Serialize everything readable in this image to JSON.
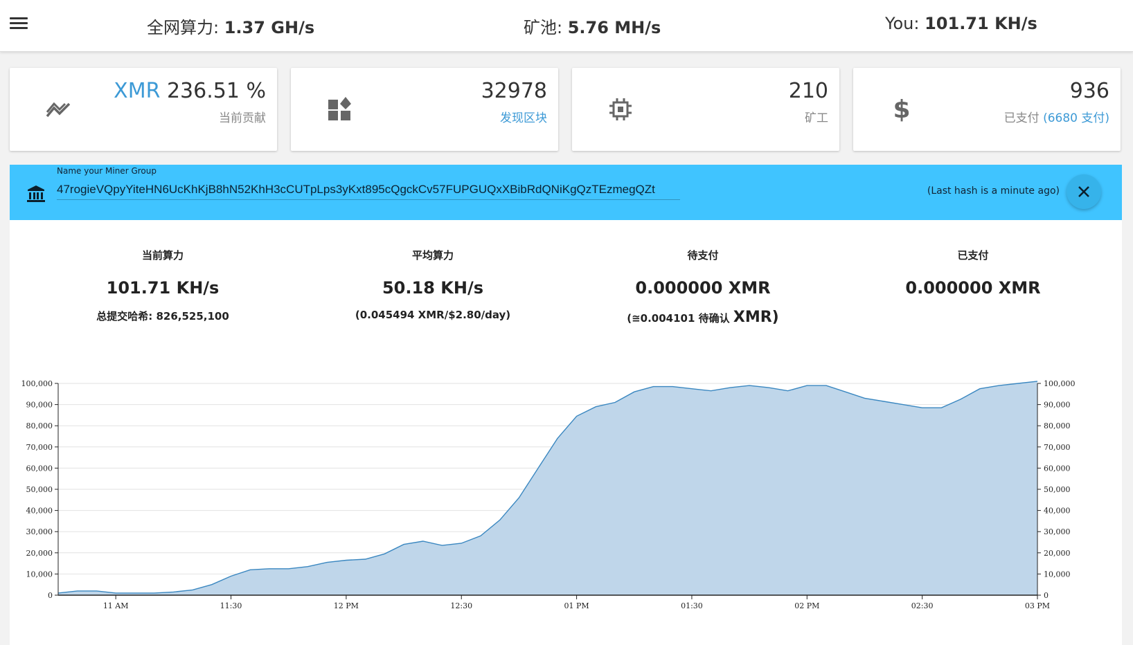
{
  "header": {
    "network": {
      "label": "全网算力: ",
      "value": "1.37 GH/s"
    },
    "pool": {
      "label": "矿池: ",
      "value": "5.76 MH/s"
    },
    "you": {
      "label": "You: ",
      "value": "101.71 KH/s"
    }
  },
  "cards": [
    {
      "icon": "trending-chart-icon",
      "value_prefix": "XMR",
      "value": " 236.51 %",
      "sub": "当前贡献"
    },
    {
      "icon": "widgets-icon",
      "value": "32978",
      "sub": "发现区块"
    },
    {
      "icon": "cpu-chip-icon",
      "value": "210",
      "sub": "矿工"
    },
    {
      "icon": "dollar-icon",
      "value": "936",
      "sub_prefix": "已支付 ",
      "sub": "(6680 支付)"
    }
  ],
  "miner": {
    "label": "Name your Miner Group",
    "address": "47rogieVQpyYiteHN6UcKhKjB8hN52KhH3cCUTpLps3yKxt895cQgckCv57FUPGUQxXBibRdQNiKgQzTEzmegQZt",
    "last_hash": "(Last hash is a minute ago)"
  },
  "stats": [
    {
      "title": "当前算力",
      "value": "101.71 KH/s",
      "sub": "总提交哈希: 826,525,100"
    },
    {
      "title": "平均算力",
      "value": "50.18 KH/s",
      "sub": "(0.045494 XMR/$2.80/day)"
    },
    {
      "title": "待支付",
      "value": "0.000000 XMR",
      "sub_prefix": "(≅0.004101 待确认 ",
      "sub_big": "XMR)"
    },
    {
      "title": "已支付",
      "value": "0.000000 XMR"
    }
  ],
  "colors": {
    "accent": "#3d9ad6",
    "bar": "#40c4ff",
    "area": "#bfd6ea",
    "line": "#3a87c0"
  },
  "chart_data": {
    "type": "area",
    "x_labels": [
      "11 AM",
      "11:30",
      "12 PM",
      "12:30",
      "01 PM",
      "01:30",
      "02 PM",
      "02:30",
      "03 PM"
    ],
    "x": [
      "10:45",
      "10:50",
      "10:55",
      "11:00",
      "11:05",
      "11:10",
      "11:15",
      "11:20",
      "11:25",
      "11:30",
      "11:35",
      "11:40",
      "11:45",
      "11:50",
      "11:55",
      "12:00",
      "12:05",
      "12:10",
      "12:15",
      "12:20",
      "12:25",
      "12:30",
      "12:35",
      "12:40",
      "12:45",
      "12:50",
      "12:55",
      "13:00",
      "13:05",
      "13:10",
      "13:15",
      "13:20",
      "13:25",
      "13:30",
      "13:35",
      "13:40",
      "13:45",
      "13:50",
      "13:55",
      "14:00",
      "14:05",
      "14:10",
      "14:15",
      "14:20",
      "14:25",
      "14:30",
      "14:35",
      "14:40",
      "14:45",
      "14:50",
      "14:55",
      "15:00"
    ],
    "values": [
      1000,
      2000,
      2000,
      1000,
      1000,
      1000,
      1500,
      2500,
      5000,
      9000,
      12000,
      12500,
      12500,
      13500,
      15500,
      16500,
      17000,
      19500,
      24000,
      25500,
      23500,
      24500,
      28000,
      35500,
      46000,
      60000,
      74000,
      84500,
      89000,
      91000,
      96000,
      98500,
      98500,
      97500,
      96500,
      98000,
      99000,
      98000,
      96500,
      99000,
      99000,
      96000,
      93000,
      91500,
      90000,
      88500,
      88500,
      92500,
      97500,
      99000,
      100000,
      101000
    ],
    "ylim": [
      0,
      100000
    ],
    "y_ticks": [
      "0",
      "10,000",
      "20,000",
      "30,000",
      "40,000",
      "50,000",
      "60,000",
      "70,000",
      "80,000",
      "90,000",
      "100,000"
    ],
    "grid": true
  }
}
